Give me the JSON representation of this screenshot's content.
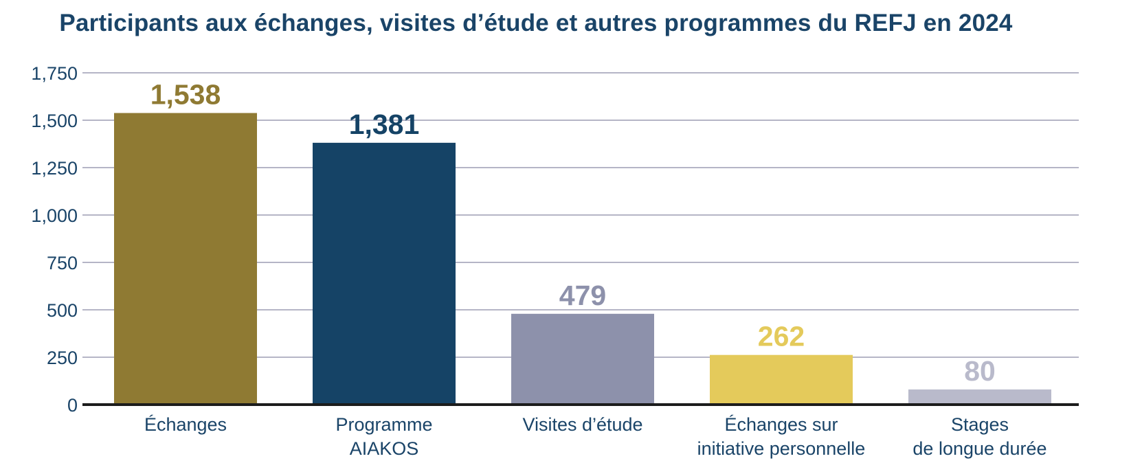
{
  "chart_data": {
    "type": "bar",
    "title": "Participants aux échanges, visites d’étude et autres programmes du REFJ en 2024",
    "xlabel": "",
    "ylabel": "",
    "ylim": [
      0,
      1750
    ],
    "yticks": [
      0,
      250,
      500,
      750,
      1000,
      1250,
      1500,
      1750
    ],
    "ytick_labels": [
      "0",
      "250",
      "500",
      "750",
      "1,000",
      "1,250",
      "1,500",
      "1,750"
    ],
    "grid": true,
    "legend": "none",
    "categories": [
      [
        "Échanges"
      ],
      [
        "Programme",
        "AIAKOS"
      ],
      [
        "Visites d’étude"
      ],
      [
        "Échanges sur",
        "initiative personnelle"
      ],
      [
        "Stages",
        "de longue durée"
      ]
    ],
    "values": [
      1538,
      1381,
      479,
      262,
      80
    ],
    "value_labels": [
      "1,538",
      "1,381",
      "479",
      "262",
      "80"
    ],
    "colors": [
      "#8f7a33",
      "#154366",
      "#8d91ab",
      "#e4ca5b",
      "#b9bacb"
    ]
  },
  "style": {
    "title_color": "#1a4468",
    "axis_text_color": "#1a4468",
    "gridline_color": "#b5b5c6",
    "baseline_color": "#1c1c1c"
  }
}
